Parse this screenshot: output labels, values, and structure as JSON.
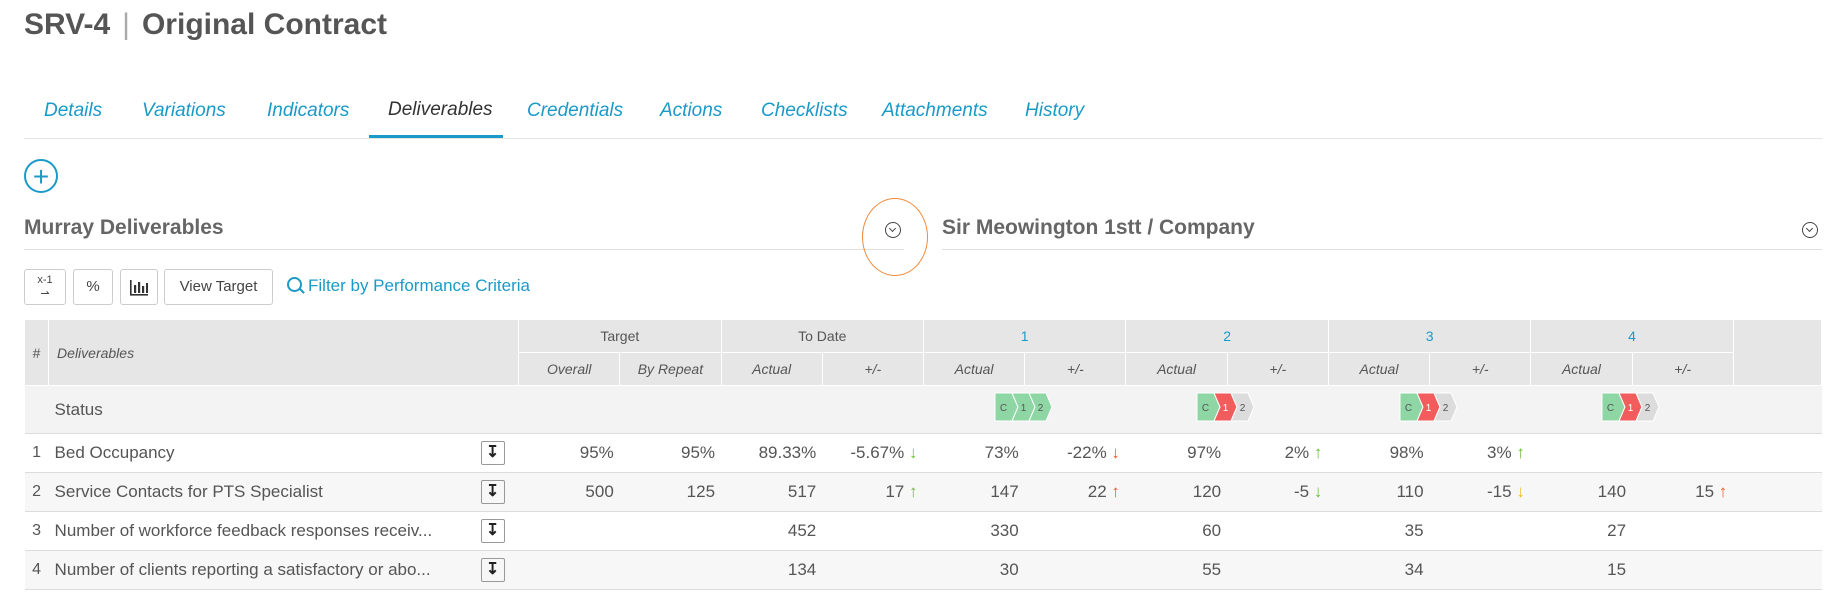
{
  "header": {
    "code": "SRV-4",
    "separator": "|",
    "name": "Original Contract"
  },
  "tabs": [
    {
      "label": "Details"
    },
    {
      "label": "Variations"
    },
    {
      "label": "Indicators"
    },
    {
      "label": "Deliverables",
      "active": true
    },
    {
      "label": "Credentials"
    },
    {
      "label": "Actions"
    },
    {
      "label": "Checklists"
    },
    {
      "label": "Attachments"
    },
    {
      "label": "History"
    }
  ],
  "add_button": {
    "label": "+"
  },
  "left_section": {
    "title": "Murray Deliverables"
  },
  "right_section": {
    "title": "Sir Meowington 1stt / Company"
  },
  "toolbar": {
    "period_button": "x-1",
    "percent_button": "%",
    "chart_icon": "chart-icon",
    "view_target": "View Target",
    "filter_link": "Filter by Performance Criteria"
  },
  "table": {
    "hash": "#",
    "deliverables": "Deliverables",
    "groups": {
      "target": "Target",
      "to_date": "To Date",
      "p1": "1",
      "p2": "2",
      "p3": "3",
      "p4": "4"
    },
    "sub": {
      "overall": "Overall",
      "by_repeat": "By Repeat",
      "actual": "Actual",
      "plusminus": "+/-"
    },
    "status_label": "Status",
    "status_chevrons": [
      {
        "labels": [
          "C",
          "1",
          "2"
        ],
        "colors": [
          "#8fd6a5",
          "#8fd6a5",
          "#8fd6a5"
        ]
      },
      {
        "labels": [
          "C",
          "1",
          "2"
        ],
        "colors": [
          "#8fd6a5",
          "#f25c5c",
          "#dcdcdc"
        ]
      },
      {
        "labels": [
          "C",
          "1",
          "2"
        ],
        "colors": [
          "#8fd6a5",
          "#f25c5c",
          "#dcdcdc"
        ]
      },
      {
        "labels": [
          "C",
          "1",
          "2"
        ],
        "colors": [
          "#8fd6a5",
          "#f25c5c",
          "#dcdcdc"
        ]
      }
    ],
    "rows": [
      {
        "idx": "1",
        "name": "Bed Occupancy",
        "overall": "95%",
        "by_repeat": "95%",
        "td_actual": "89.33%",
        "td_pm": "-5.67%",
        "td_arrow": "↓",
        "td_arrow_class": "arrow-down-green",
        "p1_actual": "73%",
        "p1_pm": "-22%",
        "p1_arrow": "↓",
        "p1_arrow_class": "arrow-down-red",
        "p2_actual": "97%",
        "p2_pm": "2%",
        "p2_arrow": "↑",
        "p2_arrow_class": "arrow-up-green",
        "p3_actual": "98%",
        "p3_pm": "3%",
        "p3_arrow": "↑",
        "p3_arrow_class": "arrow-up-green",
        "p4_actual": "",
        "p4_pm": "",
        "p4_arrow": "",
        "p4_arrow_class": ""
      },
      {
        "idx": "2",
        "name": "Service Contacts for PTS Specialist",
        "overall": "500",
        "by_repeat": "125",
        "td_actual": "517",
        "td_pm": "17",
        "td_arrow": "↑",
        "td_arrow_class": "arrow-up-green",
        "p1_actual": "147",
        "p1_pm": "22",
        "p1_arrow": "↑",
        "p1_arrow_class": "arrow-up-red",
        "p2_actual": "120",
        "p2_pm": "-5",
        "p2_arrow": "↓",
        "p2_arrow_class": "arrow-down-green",
        "p3_actual": "110",
        "p3_pm": "-15",
        "p3_arrow": "↓",
        "p3_arrow_class": "arrow-down-yellow",
        "p4_actual": "140",
        "p4_pm": "15",
        "p4_arrow": "↑",
        "p4_arrow_class": "arrow-up-red"
      },
      {
        "idx": "3",
        "name": "Number of workforce feedback responses receiv...",
        "overall": "",
        "by_repeat": "",
        "td_actual": "452",
        "td_pm": "",
        "td_arrow": "",
        "td_arrow_class": "",
        "p1_actual": "330",
        "p1_pm": "",
        "p1_arrow": "",
        "p1_arrow_class": "",
        "p2_actual": "60",
        "p2_pm": "",
        "p2_arrow": "",
        "p2_arrow_class": "",
        "p3_actual": "35",
        "p3_pm": "",
        "p3_arrow": "",
        "p3_arrow_class": "",
        "p4_actual": "27",
        "p4_pm": "",
        "p4_arrow": "",
        "p4_arrow_class": ""
      },
      {
        "idx": "4",
        "name": "Number of clients reporting a satisfactory or abo...",
        "overall": "",
        "by_repeat": "",
        "td_actual": "134",
        "td_pm": "",
        "td_arrow": "",
        "td_arrow_class": "",
        "p1_actual": "30",
        "p1_pm": "",
        "p1_arrow": "",
        "p1_arrow_class": "",
        "p2_actual": "55",
        "p2_pm": "",
        "p2_arrow": "",
        "p2_arrow_class": "",
        "p3_actual": "34",
        "p3_pm": "",
        "p3_arrow": "",
        "p3_arrow_class": "",
        "p4_actual": "15",
        "p4_pm": "",
        "p4_arrow": "",
        "p4_arrow_class": ""
      }
    ]
  }
}
